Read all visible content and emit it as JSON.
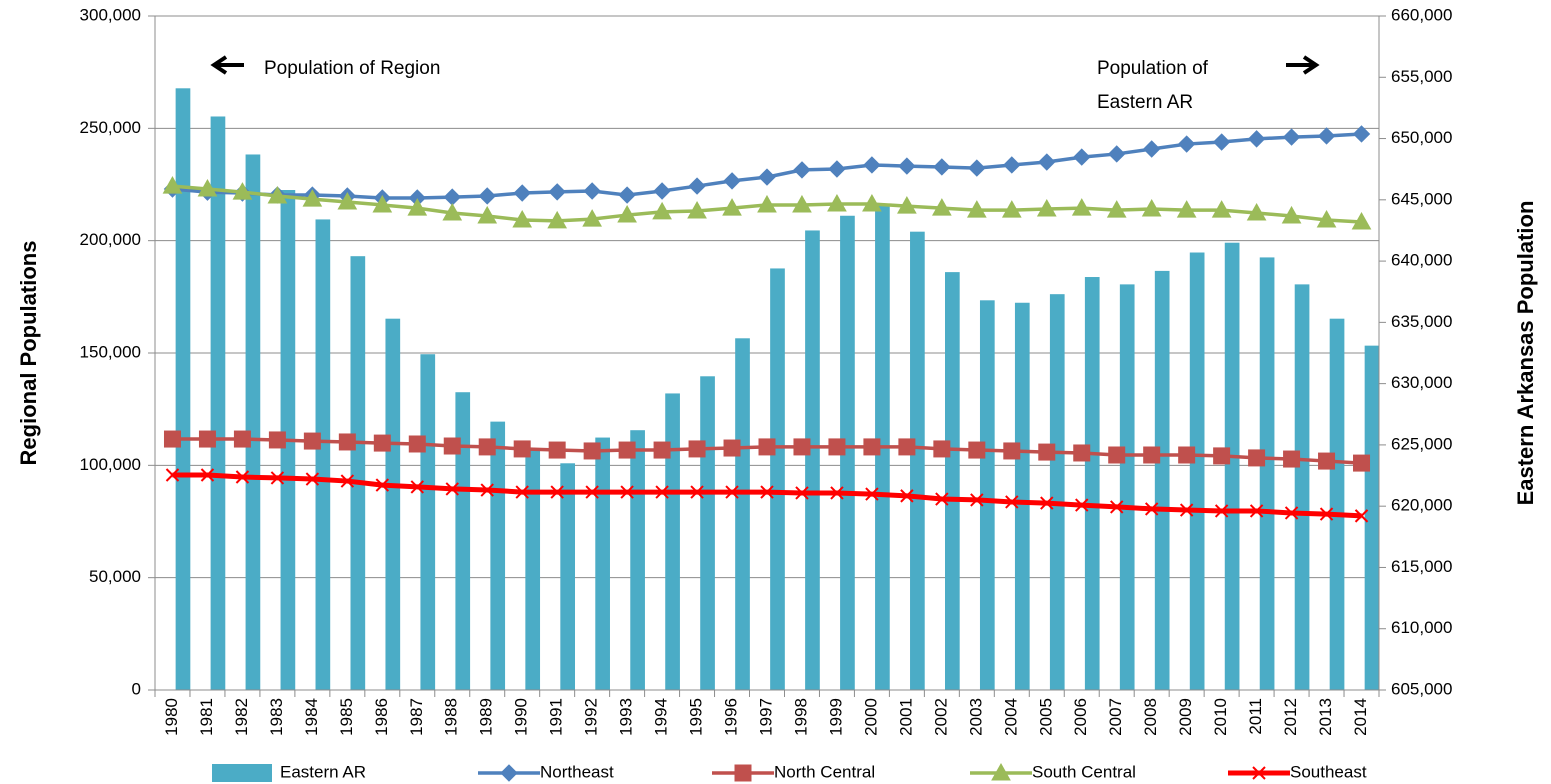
{
  "chart_data": {
    "type": "combo",
    "y_label": "Regional Populations",
    "y2_label": "Eastern Arkansas Population",
    "annotations": [
      "Population of Region",
      "Population of",
      "Eastern AR"
    ],
    "categories": [
      "1980",
      "1981",
      "1982",
      "1983",
      "1984",
      "1985",
      "1986",
      "1987",
      "1988",
      "1989",
      "1990",
      "1991",
      "1992",
      "1993",
      "1994",
      "1995",
      "1996",
      "1997",
      "1998",
      "1999",
      "2000",
      "2001",
      "2002",
      "2003",
      "2004",
      "2005",
      "2006",
      "2007",
      "2008",
      "2009",
      "2010",
      "2011",
      "2012",
      "2013",
      "2014"
    ],
    "ylim": [
      0,
      300000
    ],
    "yticks": [
      0,
      {
        "value": 50000,
        "label": "50,000"
      },
      {
        "value": 100000,
        "label": "100,000"
      },
      {
        "value": 150000,
        "label": "150,000"
      },
      {
        "value": 200000,
        "label": "200,000"
      },
      {
        "value": 250000,
        "label": "250,000"
      },
      {
        "value": 300000,
        "label": "300,000"
      }
    ],
    "y2lim": [
      605000,
      660000
    ],
    "y2ticks": [
      {
        "value": 605000,
        "label": "605,000"
      },
      {
        "value": 610000,
        "label": "610,000"
      },
      {
        "value": 615000,
        "label": "615,000"
      },
      {
        "value": 620000,
        "label": "620,000"
      },
      {
        "value": 625000,
        "label": "625,000"
      },
      {
        "value": 630000,
        "label": "630,000"
      },
      {
        "value": 635000,
        "label": "635,000"
      },
      {
        "value": 640000,
        "label": "640,000"
      },
      {
        "value": 645000,
        "label": "645,000"
      },
      {
        "value": 650000,
        "label": "650,000"
      },
      {
        "value": 655000,
        "label": "655,000"
      },
      {
        "value": 660000,
        "label": "660,000"
      }
    ],
    "grid": true,
    "legend": "bottom",
    "series": [
      {
        "name": "Eastern AR",
        "kind": "bar",
        "axis": "y2",
        "color": "#4bacc6",
        "values": [
          654100,
          651800,
          648700,
          645800,
          643400,
          640400,
          635300,
          632400,
          629300,
          626900,
          624600,
          623500,
          625600,
          626200,
          629200,
          630600,
          633700,
          639400,
          642500,
          643700,
          644600,
          642400,
          639100,
          636800,
          636600,
          637300,
          638700,
          638100,
          639200,
          640700,
          641500,
          640300,
          638100,
          635300,
          633100
        ]
      },
      {
        "name": "Northeast",
        "kind": "line",
        "marker": "diamond",
        "color": "#4f81bd",
        "values": [
          223000,
          221600,
          221200,
          220300,
          220300,
          219900,
          219000,
          219000,
          219400,
          219900,
          221200,
          221700,
          222100,
          220300,
          222100,
          224300,
          226600,
          228300,
          231500,
          231900,
          233700,
          233200,
          232800,
          232300,
          233700,
          235000,
          237200,
          238600,
          240800,
          243000,
          243900,
          245300,
          246100,
          246600,
          247500
        ]
      },
      {
        "name": "North Central",
        "kind": "line",
        "marker": "square",
        "color": "#c0504d",
        "values": [
          111700,
          111700,
          111700,
          111300,
          110800,
          110400,
          109900,
          109500,
          108600,
          108200,
          107300,
          106800,
          106400,
          106800,
          106800,
          107300,
          107700,
          108200,
          108200,
          108200,
          108200,
          108200,
          107300,
          106800,
          106400,
          105900,
          105500,
          104600,
          104600,
          104600,
          104200,
          103300,
          102800,
          101900,
          101000
        ]
      },
      {
        "name": "South Central",
        "kind": "line",
        "marker": "triangle",
        "color": "#9bbb59",
        "values": [
          224300,
          223000,
          221600,
          219900,
          218500,
          217200,
          215900,
          214500,
          212300,
          211000,
          209200,
          208800,
          209600,
          211400,
          212800,
          213200,
          214500,
          215900,
          215900,
          216300,
          216300,
          215400,
          214500,
          213600,
          213600,
          214100,
          214500,
          213600,
          214100,
          213600,
          213600,
          212300,
          211000,
          209200,
          208300
        ]
      },
      {
        "name": "Southeast",
        "kind": "line",
        "marker": "x",
        "color": "#ff0000",
        "values": [
          95700,
          95700,
          94800,
          94400,
          93900,
          93000,
          91200,
          90400,
          89500,
          89000,
          88100,
          88100,
          88100,
          88100,
          88100,
          88100,
          88100,
          88100,
          87700,
          87700,
          87200,
          86400,
          85000,
          84600,
          83700,
          83200,
          82300,
          81500,
          80600,
          80100,
          79700,
          79700,
          78800,
          78300,
          77500
        ]
      }
    ]
  }
}
